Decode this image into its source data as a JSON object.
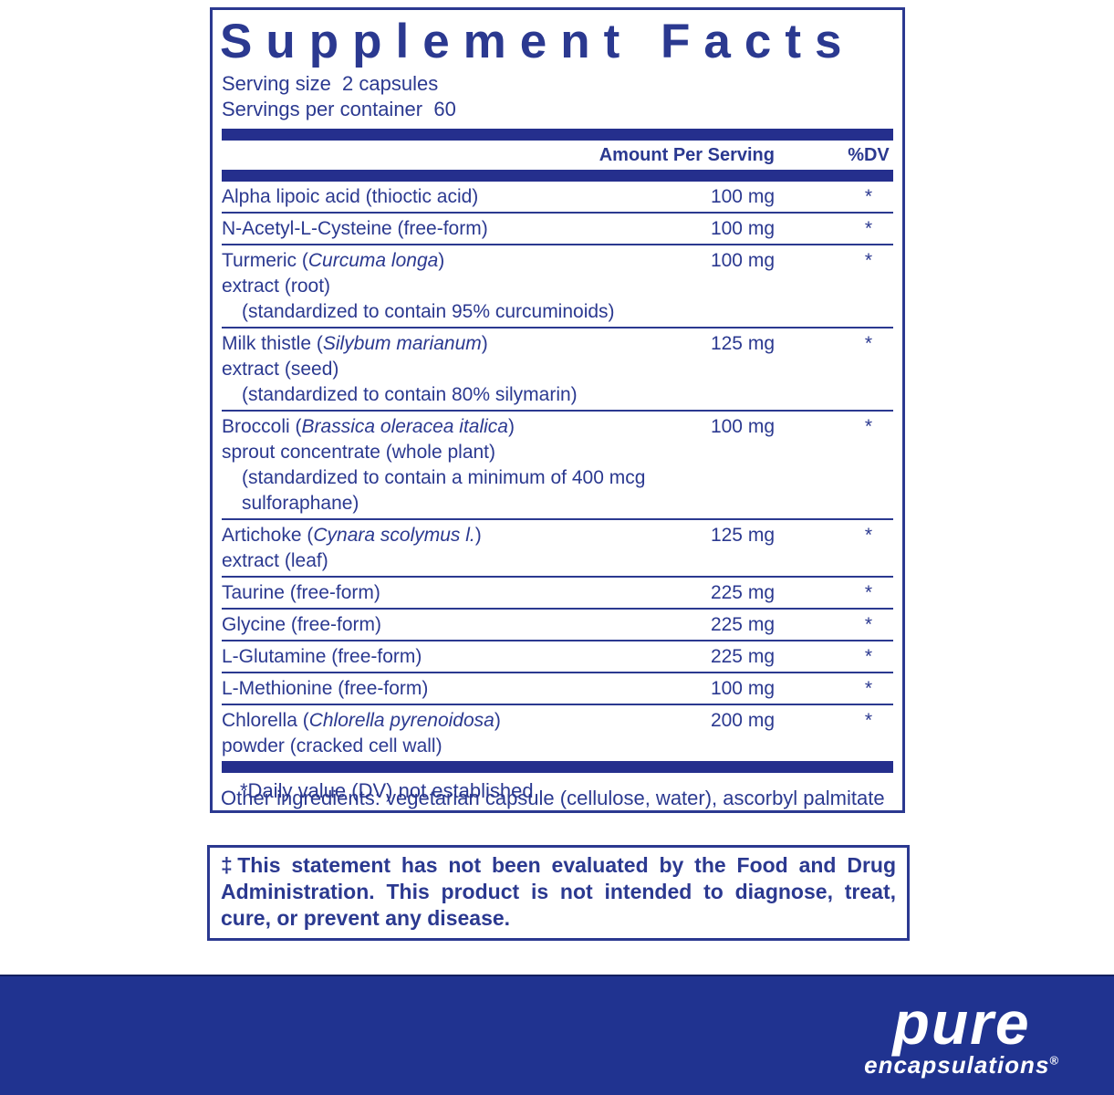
{
  "colors": {
    "ink": "#2b3990",
    "bar": "#252f8d",
    "band": "#203390"
  },
  "panel": {
    "title": "Supplement Facts",
    "serving_size_line": "Serving size  2 capsules",
    "servings_per_container_line": "Servings per container  60",
    "column_headers": {
      "amount": "Amount Per Serving",
      "dv": "%DV"
    },
    "rows": [
      {
        "lines": [
          {
            "indent": false,
            "segments": [
              {
                "t": "Alpha lipoic acid (thioctic acid)",
                "i": false
              }
            ]
          }
        ],
        "amount": "100 mg",
        "dv": "*"
      },
      {
        "lines": [
          {
            "indent": false,
            "segments": [
              {
                "t": "N-Acetyl-L-Cysteine (free-form)",
                "i": false
              }
            ]
          }
        ],
        "amount": "100 mg",
        "dv": "*"
      },
      {
        "lines": [
          {
            "indent": false,
            "segments": [
              {
                "t": "Turmeric (",
                "i": false
              },
              {
                "t": "Curcuma longa",
                "i": true
              },
              {
                "t": ")",
                "i": false
              }
            ]
          },
          {
            "indent": false,
            "segments": [
              {
                "t": "extract (root)",
                "i": false
              }
            ]
          },
          {
            "indent": true,
            "segments": [
              {
                "t": "(standardized to contain 95% curcuminoids)",
                "i": false
              }
            ]
          }
        ],
        "amount": "100 mg",
        "dv": "*"
      },
      {
        "lines": [
          {
            "indent": false,
            "segments": [
              {
                "t": "Milk thistle (",
                "i": false
              },
              {
                "t": "Silybum marianum",
                "i": true
              },
              {
                "t": ")",
                "i": false
              }
            ]
          },
          {
            "indent": false,
            "segments": [
              {
                "t": "extract (seed)",
                "i": false
              }
            ]
          },
          {
            "indent": true,
            "segments": [
              {
                "t": "(standardized to contain 80% silymarin)",
                "i": false
              }
            ]
          }
        ],
        "amount": "125 mg",
        "dv": "*"
      },
      {
        "lines": [
          {
            "indent": false,
            "segments": [
              {
                "t": "Broccoli (",
                "i": false
              },
              {
                "t": "Brassica oleracea italica",
                "i": true
              },
              {
                "t": ")",
                "i": false
              }
            ]
          },
          {
            "indent": false,
            "segments": [
              {
                "t": "sprout concentrate (whole plant)",
                "i": false
              }
            ]
          },
          {
            "indent": true,
            "segments": [
              {
                "t": "(standardized to contain a minimum of 400 mcg sulforaphane)",
                "i": false
              }
            ]
          }
        ],
        "amount": "100 mg",
        "dv": "*"
      },
      {
        "lines": [
          {
            "indent": false,
            "segments": [
              {
                "t": "Artichoke (",
                "i": false
              },
              {
                "t": "Cynara scolymus l.",
                "i": true
              },
              {
                "t": ")",
                "i": false
              }
            ]
          },
          {
            "indent": false,
            "segments": [
              {
                "t": "extract (leaf)",
                "i": false
              }
            ]
          }
        ],
        "amount": "125 mg",
        "dv": "*"
      },
      {
        "lines": [
          {
            "indent": false,
            "segments": [
              {
                "t": "Taurine (free-form)",
                "i": false
              }
            ]
          }
        ],
        "amount": "225 mg",
        "dv": "*"
      },
      {
        "lines": [
          {
            "indent": false,
            "segments": [
              {
                "t": "Glycine (free-form)",
                "i": false
              }
            ]
          }
        ],
        "amount": "225 mg",
        "dv": "*"
      },
      {
        "lines": [
          {
            "indent": false,
            "segments": [
              {
                "t": "L-Glutamine (free-form)",
                "i": false
              }
            ]
          }
        ],
        "amount": "225 mg",
        "dv": "*"
      },
      {
        "lines": [
          {
            "indent": false,
            "segments": [
              {
                "t": "L-Methionine (free-form)",
                "i": false
              }
            ]
          }
        ],
        "amount": "100 mg",
        "dv": "*"
      },
      {
        "lines": [
          {
            "indent": false,
            "segments": [
              {
                "t": "Chlorella (",
                "i": false
              },
              {
                "t": "Chlorella pyrenoidosa",
                "i": true
              },
              {
                "t": ")",
                "i": false
              }
            ]
          },
          {
            "indent": false,
            "segments": [
              {
                "t": "powder (cracked cell wall)",
                "i": false
              }
            ]
          }
        ],
        "amount": "200 mg",
        "dv": "*"
      }
    ],
    "footnote": "*Daily value (DV) not established"
  },
  "other_ingredients": "Other ingredients: vegetarian capsule (cellulose, water), ascorbyl palmitate",
  "disclaimer": "‡This statement has not been evaluated by the Food and Drug Administration. This product is not intended to diagnose, treat, cure, or prevent any disease.",
  "footer": {
    "brand_top": "pure",
    "brand_bottom": "encapsulations",
    "registered": "®"
  }
}
